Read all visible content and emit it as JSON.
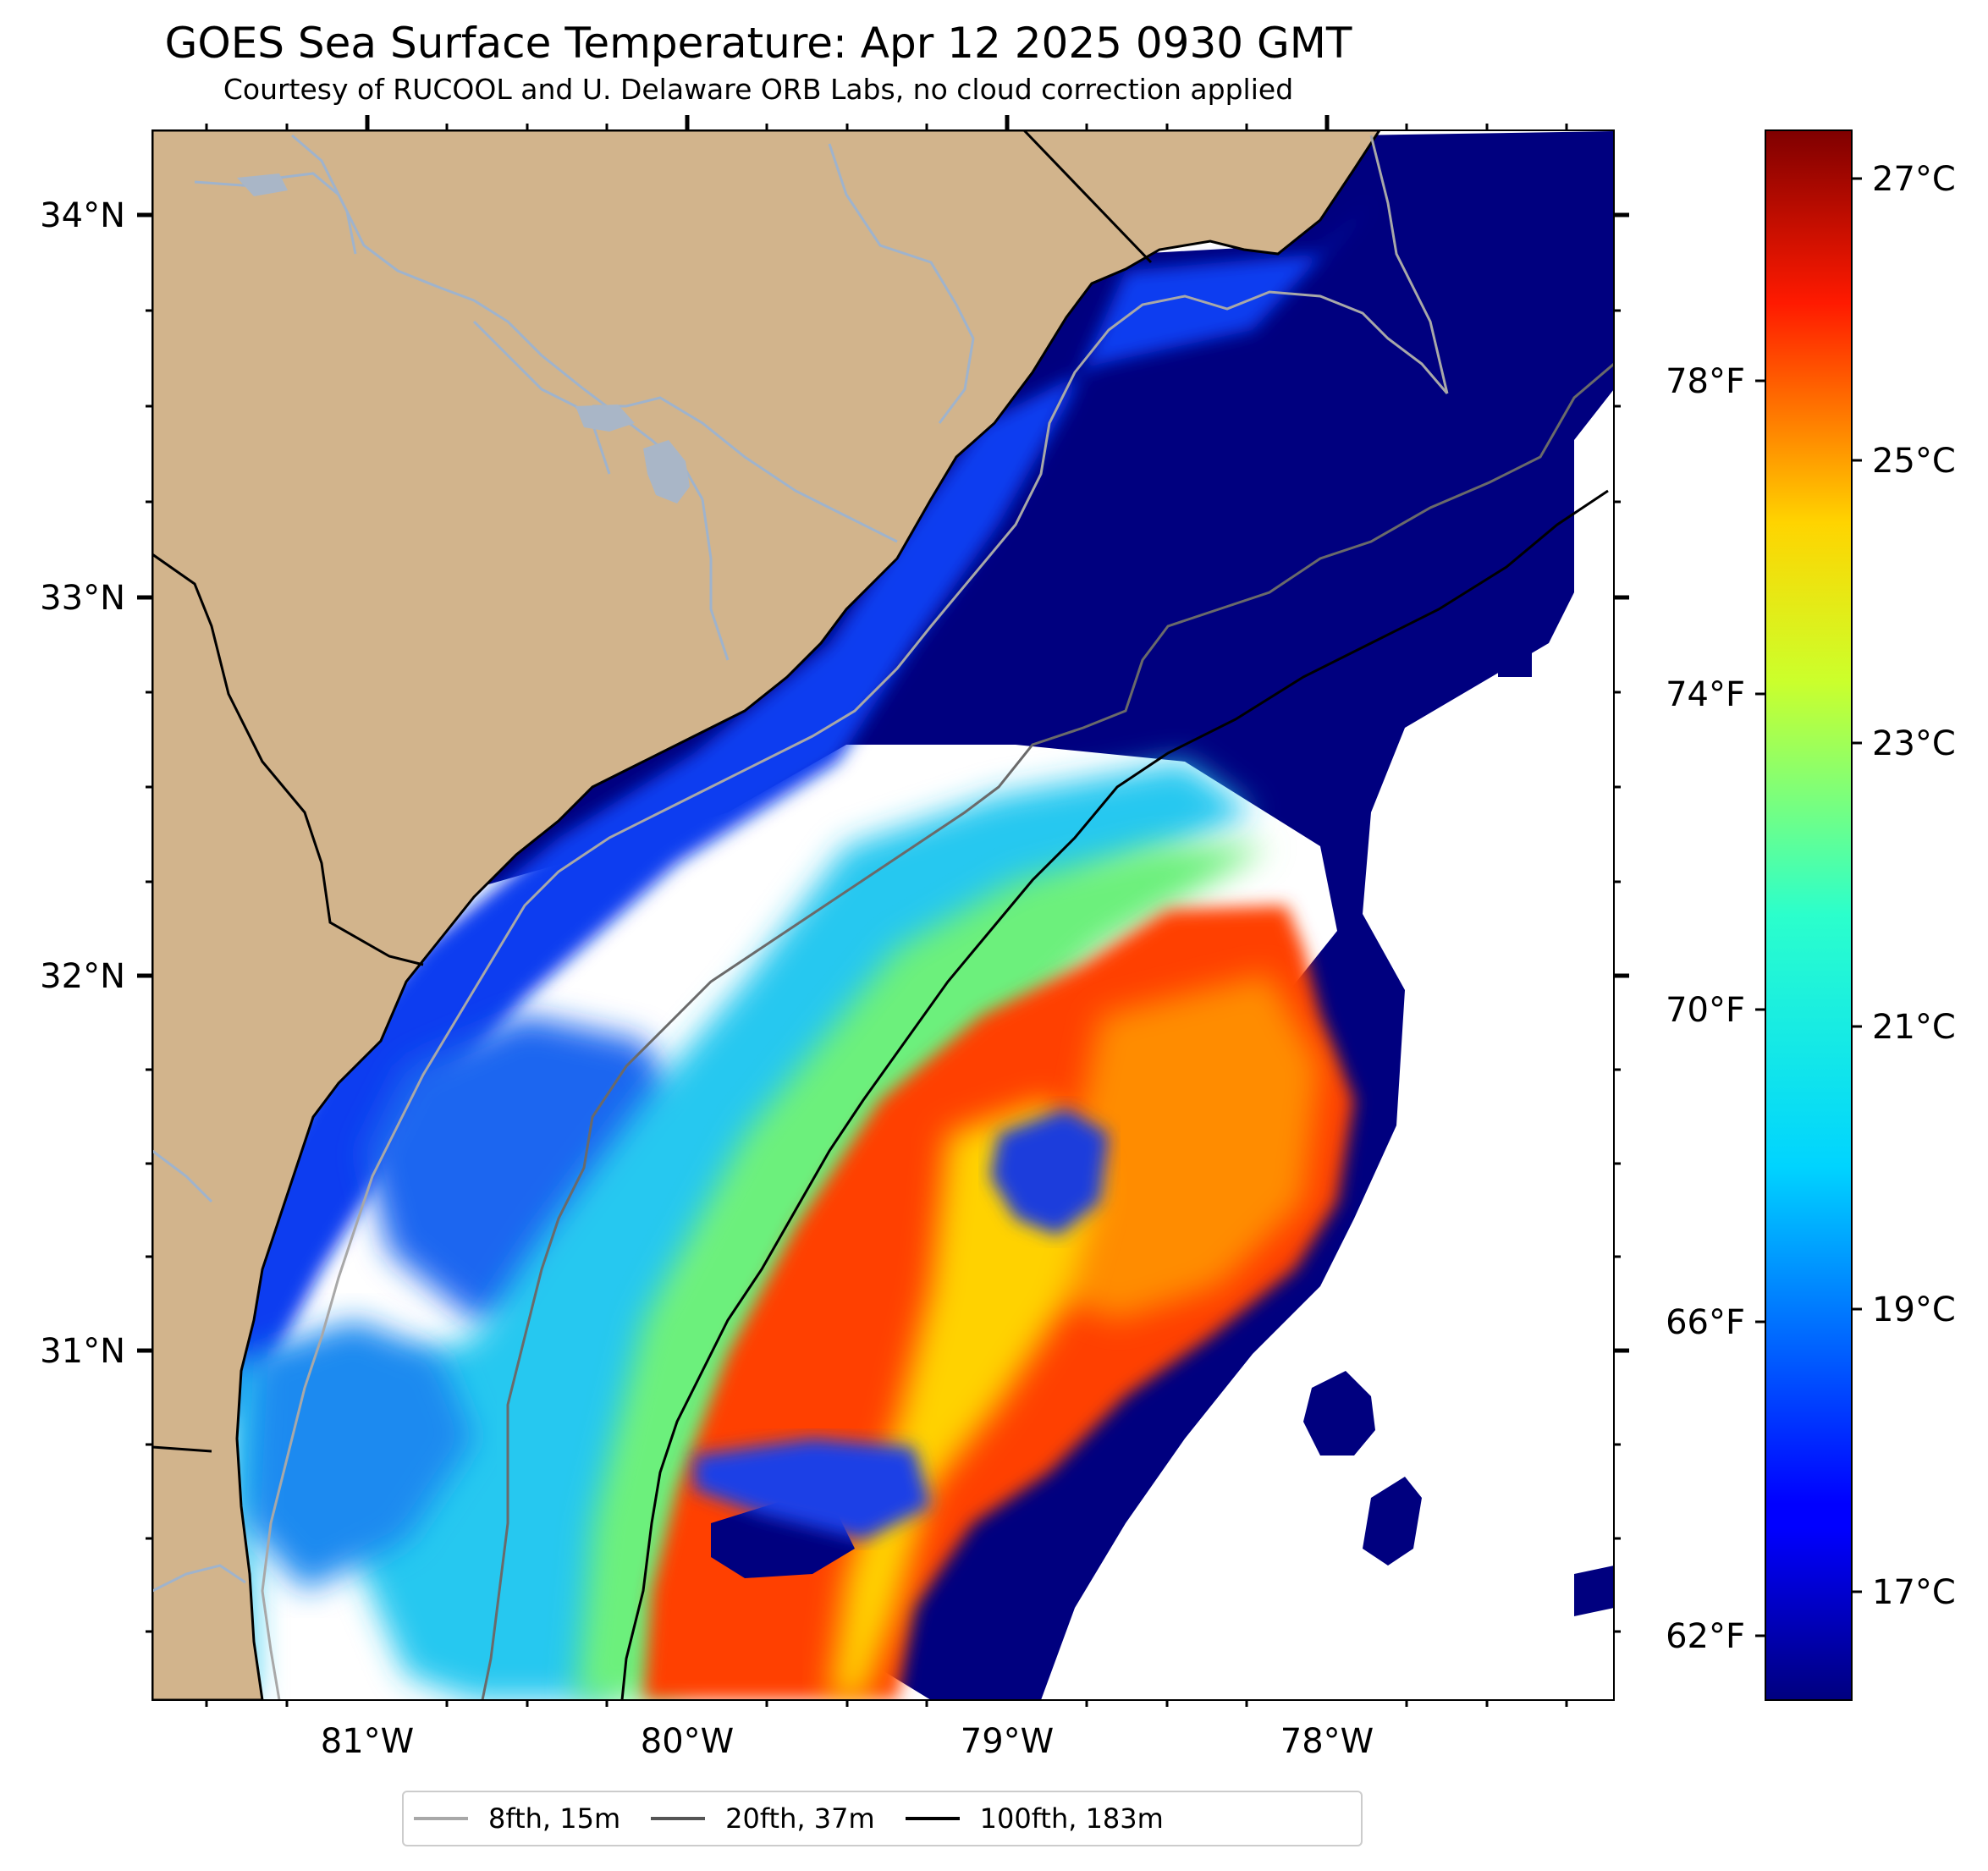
{
  "title": "GOES Sea Surface Temperature: Apr 12 2025 0930 GMT",
  "subtitle": "Courtesy of RUCOOL and U. Delaware ORB Labs, no cloud correction applied",
  "map": {
    "lat_ticks": [
      "34°N",
      "33°N",
      "32°N",
      "31°N"
    ],
    "lon_ticks": [
      "81°W",
      "80°W",
      "79°W",
      "78°W"
    ],
    "land_color": "#d2b48c",
    "river_color": "#9fb3cc",
    "no_data_color": "#ffffff"
  },
  "colorbar": {
    "colormap": "jet",
    "celsius_range": [
      16.0,
      27.4
    ],
    "celsius_ticks": [
      "27°C",
      "25°C",
      "23°C",
      "21°C",
      "19°C",
      "17°C"
    ],
    "fahrenheit_ticks": [
      "78°F",
      "74°F",
      "70°F",
      "66°F",
      "62°F"
    ]
  },
  "legend": [
    {
      "label": "8fth, 15m",
      "color": "#a8a8a8"
    },
    {
      "label": "20fth, 37m",
      "color": "#555555"
    },
    {
      "label": "100fth, 183m",
      "color": "#000000"
    }
  ]
}
